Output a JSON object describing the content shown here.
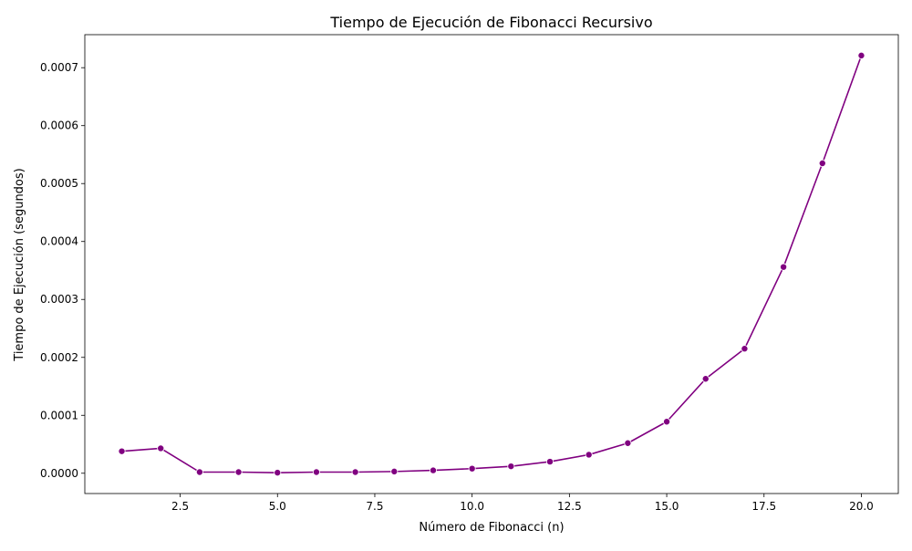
{
  "chart_data": {
    "type": "line",
    "title": "Tiempo de Ejecución de Fibonacci Recursivo",
    "xlabel": "Número de Fibonacci (n)",
    "ylabel": "Tiempo de Ejecución (segundos)",
    "xlim": [
      0.05,
      20.95
    ],
    "ylim": [
      -3.5e-05,
      0.000757
    ],
    "xticks": [
      2.5,
      5.0,
      7.5,
      10.0,
      12.5,
      15.0,
      17.5,
      20.0
    ],
    "xtick_labels": [
      "2.5",
      "5.0",
      "7.5",
      "10.0",
      "12.5",
      "15.0",
      "17.5",
      "20.0"
    ],
    "yticks": [
      0.0,
      0.0001,
      0.0002,
      0.0003,
      0.0004,
      0.0005,
      0.0006,
      0.0007
    ],
    "ytick_labels": [
      "0.0000",
      "0.0001",
      "0.0002",
      "0.0003",
      "0.0004",
      "0.0005",
      "0.0006",
      "0.0007"
    ],
    "grid": false,
    "series": [
      {
        "color": "#800080",
        "marker": "circle",
        "x": [
          1,
          2,
          3,
          4,
          5,
          6,
          7,
          8,
          9,
          10,
          11,
          12,
          13,
          14,
          15,
          16,
          17,
          18,
          19,
          20
        ],
        "y": [
          3.8e-05,
          4.3e-05,
          2e-06,
          2e-06,
          1e-06,
          2e-06,
          2e-06,
          3e-06,
          5e-06,
          8e-06,
          1.2e-05,
          2e-05,
          3.2e-05,
          5.2e-05,
          8.9e-05,
          0.000163,
          0.000215,
          0.000356,
          0.000535,
          0.000721
        ]
      }
    ]
  }
}
